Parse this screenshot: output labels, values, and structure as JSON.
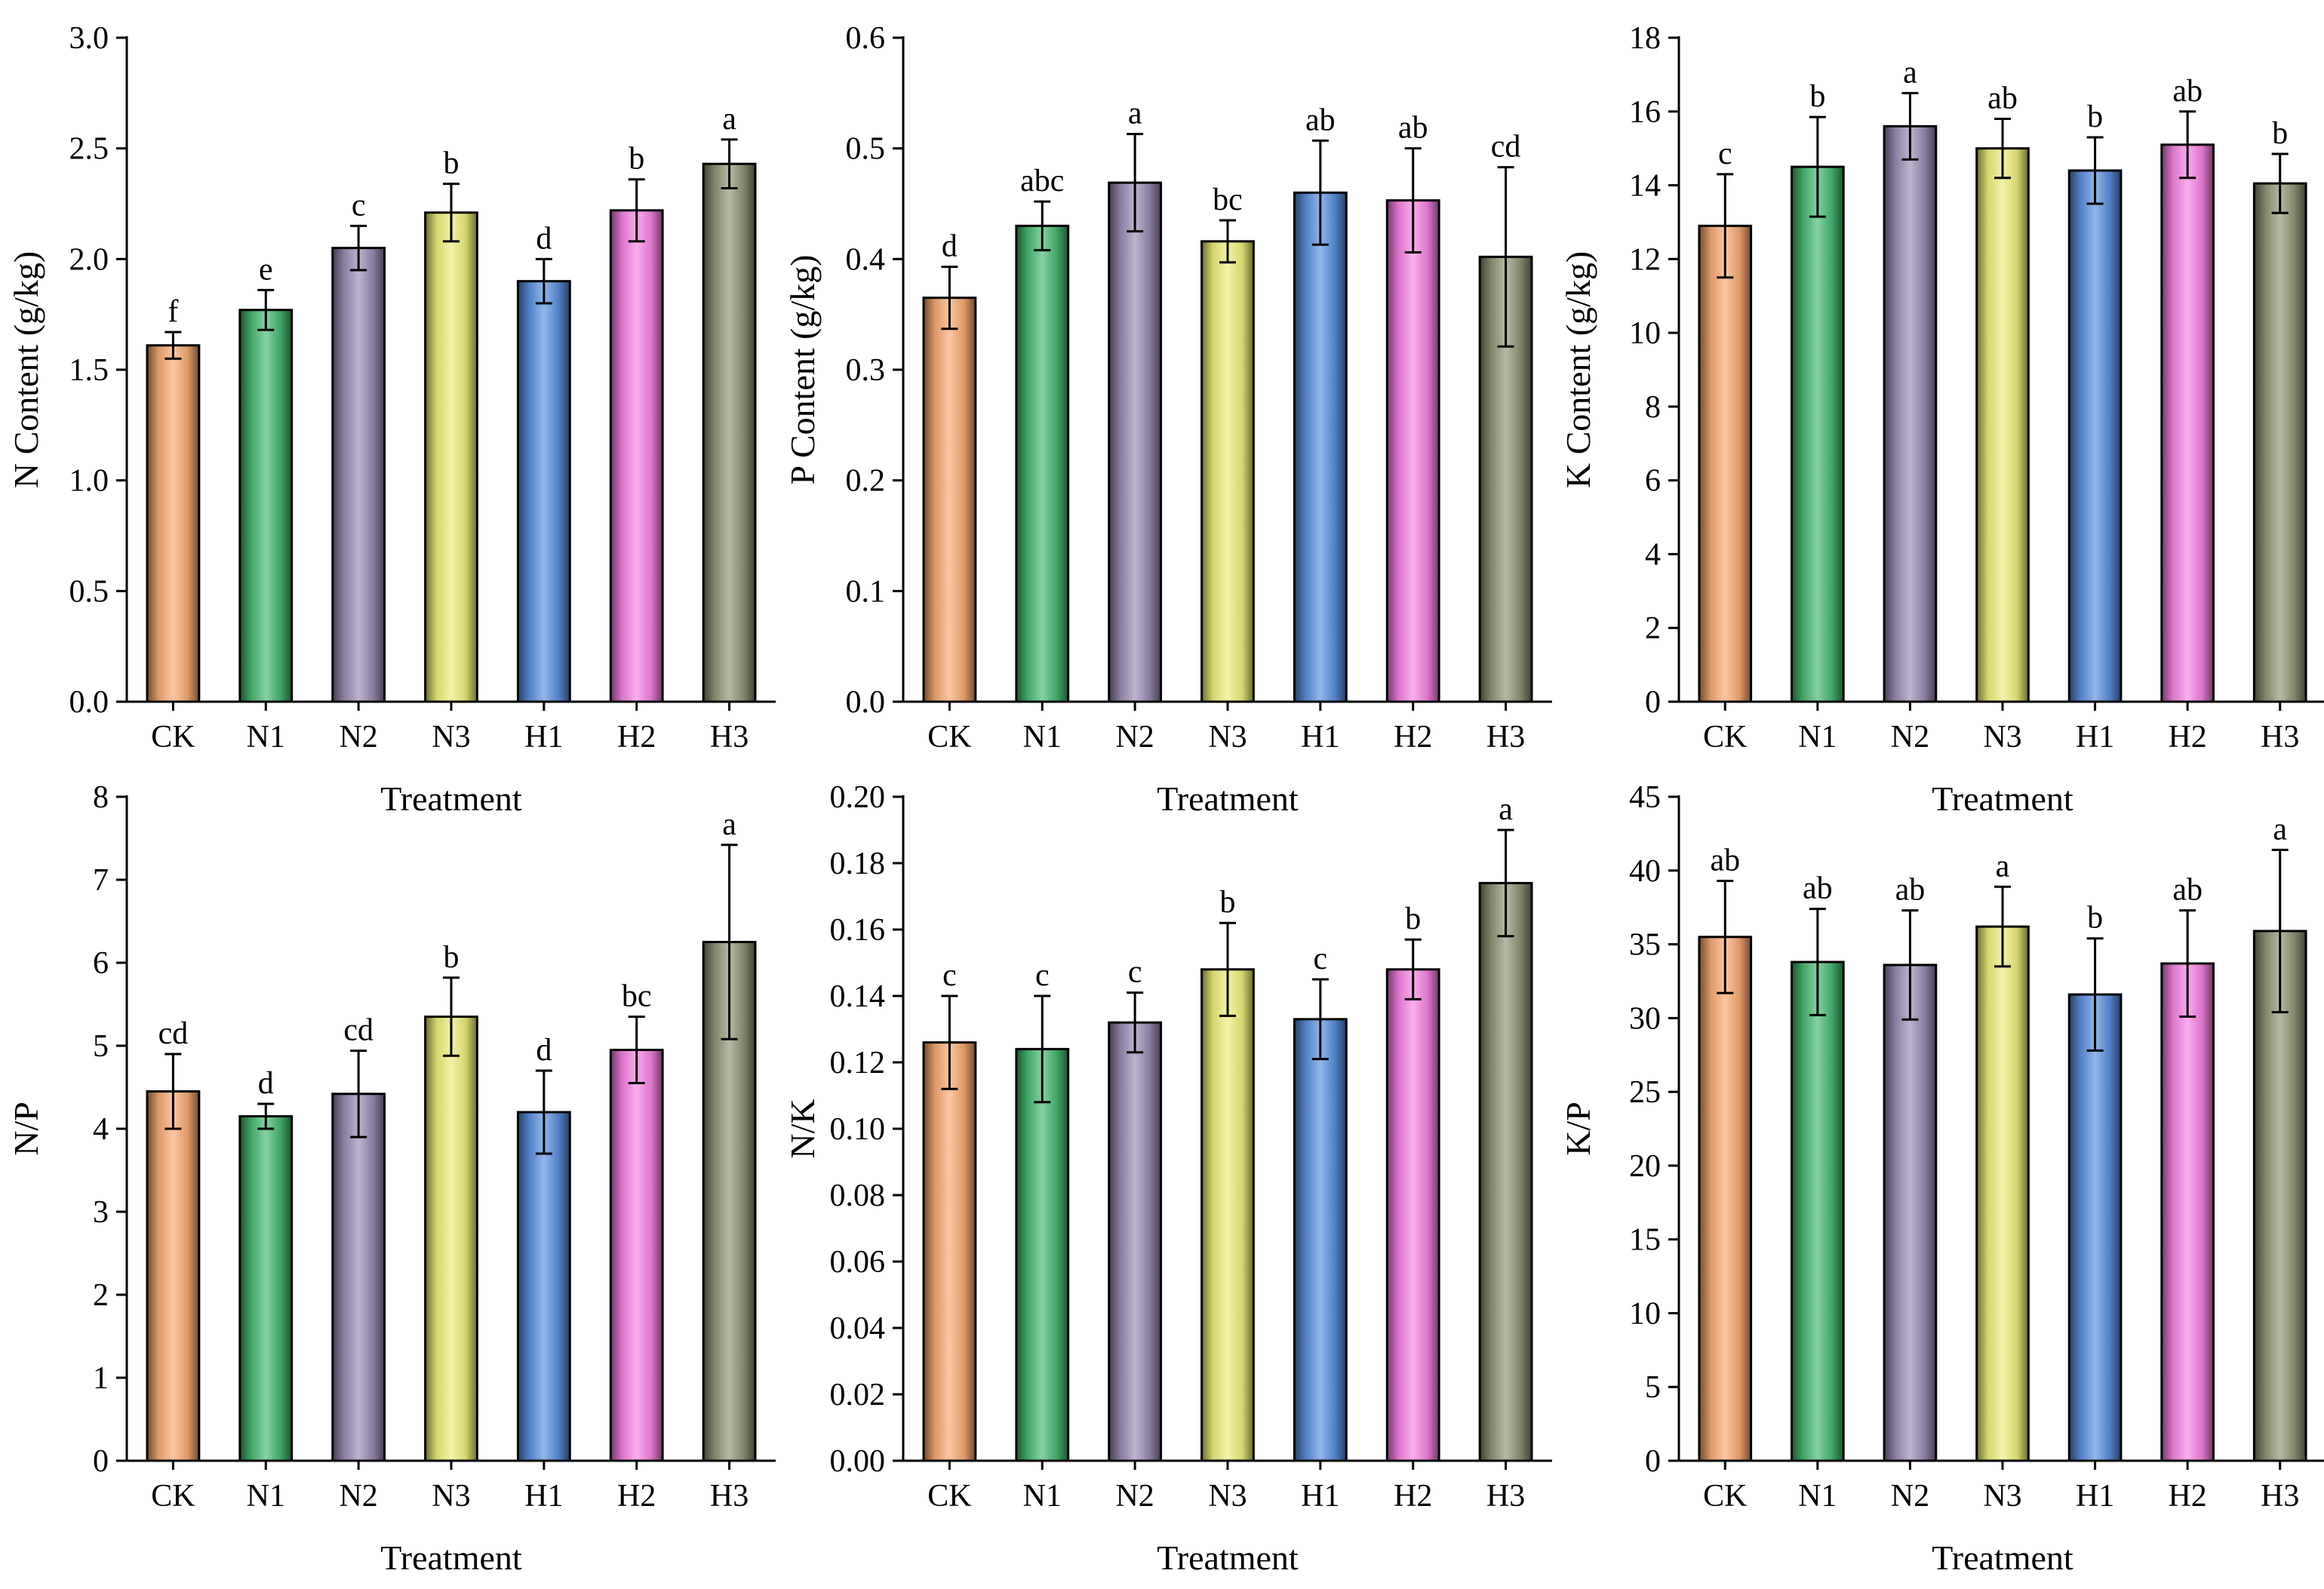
{
  "colors": {
    "CK": "#f7a971",
    "N1": "#47b870",
    "N2": "#9a8bb5",
    "N3": "#eded7a",
    "H1": "#5a8fdd",
    "H2": "#f582e3",
    "H3": "#8f9575"
  },
  "chart_data": [
    {
      "type": "bar",
      "xlabel": "Treatment",
      "ylabel": "N Content (g/kg)",
      "categories": [
        "CK",
        "N1",
        "N2",
        "N3",
        "H1",
        "H2",
        "H3"
      ],
      "values": [
        1.61,
        1.77,
        2.05,
        2.21,
        1.9,
        2.22,
        2.43
      ],
      "errors": [
        0.06,
        0.09,
        0.1,
        0.13,
        0.1,
        0.14,
        0.11
      ],
      "letters": [
        "f",
        "e",
        "c",
        "b",
        "d",
        "b",
        "a"
      ],
      "ylim": [
        0,
        3.0
      ],
      "ticks": [
        0.0,
        0.5,
        1.0,
        1.5,
        2.0,
        2.5,
        3.0
      ],
      "tick_labels": [
        "0.0",
        "0.5",
        "1.0",
        "1.5",
        "2.0",
        "2.5",
        "3.0"
      ]
    },
    {
      "type": "bar",
      "xlabel": "Treatment",
      "ylabel": "P Content (g/kg)",
      "categories": [
        "CK",
        "N1",
        "N2",
        "N3",
        "H1",
        "H2",
        "H3"
      ],
      "values": [
        0.365,
        0.43,
        0.469,
        0.416,
        0.46,
        0.453,
        0.402
      ],
      "errors": [
        0.028,
        0.022,
        0.044,
        0.019,
        0.047,
        0.047,
        0.081
      ],
      "letters": [
        "d",
        "abc",
        "a",
        "bc",
        "ab",
        "ab",
        "cd"
      ],
      "ylim": [
        0,
        0.6
      ],
      "ticks": [
        0.0,
        0.1,
        0.2,
        0.3,
        0.4,
        0.5,
        0.6
      ],
      "tick_labels": [
        "0.0",
        "0.1",
        "0.2",
        "0.3",
        "0.4",
        "0.5",
        "0.6"
      ]
    },
    {
      "type": "bar",
      "xlabel": "Treatment",
      "ylabel": "K Content (g/kg)",
      "categories": [
        "CK",
        "N1",
        "N2",
        "N3",
        "H1",
        "H2",
        "H3"
      ],
      "values": [
        12.9,
        14.5,
        15.6,
        15.0,
        14.4,
        15.1,
        14.05
      ],
      "errors": [
        1.4,
        1.35,
        0.9,
        0.8,
        0.9,
        0.9,
        0.8
      ],
      "letters": [
        "c",
        "b",
        "a",
        "ab",
        "b",
        "ab",
        "b"
      ],
      "ylim": [
        0,
        18
      ],
      "ticks": [
        0,
        2,
        4,
        6,
        8,
        10,
        12,
        14,
        16,
        18
      ],
      "tick_labels": [
        "0",
        "2",
        "4",
        "6",
        "8",
        "10",
        "12",
        "14",
        "16",
        "18"
      ]
    },
    {
      "type": "bar",
      "xlabel": "Treatment",
      "ylabel": "N/P",
      "categories": [
        "CK",
        "N1",
        "N2",
        "N3",
        "H1",
        "H2",
        "H3"
      ],
      "values": [
        4.45,
        4.15,
        4.42,
        5.35,
        4.2,
        4.95,
        6.25
      ],
      "errors": [
        0.45,
        0.15,
        0.52,
        0.47,
        0.5,
        0.4,
        1.17
      ],
      "letters": [
        "cd",
        "d",
        "cd",
        "b",
        "d",
        "bc",
        "a"
      ],
      "ylim": [
        0,
        8
      ],
      "ticks": [
        0,
        1,
        2,
        3,
        4,
        5,
        6,
        7,
        8
      ],
      "tick_labels": [
        "0",
        "1",
        "2",
        "3",
        "4",
        "5",
        "6",
        "7",
        "8"
      ]
    },
    {
      "type": "bar",
      "xlabel": "Treatment",
      "ylabel": "N/K",
      "categories": [
        "CK",
        "N1",
        "N2",
        "N3",
        "H1",
        "H2",
        "H3"
      ],
      "values": [
        0.126,
        0.124,
        0.132,
        0.148,
        0.133,
        0.148,
        0.174
      ],
      "errors": [
        0.014,
        0.016,
        0.009,
        0.014,
        0.012,
        0.009,
        0.016
      ],
      "letters": [
        "c",
        "c",
        "c",
        "b",
        "c",
        "b",
        "a"
      ],
      "ylim": [
        0,
        0.2
      ],
      "ticks": [
        0.0,
        0.02,
        0.04,
        0.06,
        0.08,
        0.1,
        0.12,
        0.14,
        0.16,
        0.18,
        0.2
      ],
      "tick_labels": [
        "0.00",
        "0.02",
        "0.04",
        "0.06",
        "0.08",
        "0.10",
        "0.12",
        "0.14",
        "0.16",
        "0.18",
        "0.20"
      ]
    },
    {
      "type": "bar",
      "xlabel": "Treatment",
      "ylabel": "K/P",
      "categories": [
        "CK",
        "N1",
        "N2",
        "N3",
        "H1",
        "H2",
        "H3"
      ],
      "values": [
        35.5,
        33.8,
        33.6,
        36.2,
        31.6,
        33.7,
        35.9
      ],
      "errors": [
        3.8,
        3.6,
        3.7,
        2.7,
        3.8,
        3.6,
        5.5
      ],
      "letters": [
        "ab",
        "ab",
        "ab",
        "a",
        "b",
        "ab",
        "a"
      ],
      "ylim": [
        0,
        45
      ],
      "ticks": [
        0,
        5,
        10,
        15,
        20,
        25,
        30,
        35,
        40,
        45
      ],
      "tick_labels": [
        "0",
        "5",
        "10",
        "15",
        "20",
        "25",
        "30",
        "35",
        "40",
        "45"
      ]
    }
  ]
}
